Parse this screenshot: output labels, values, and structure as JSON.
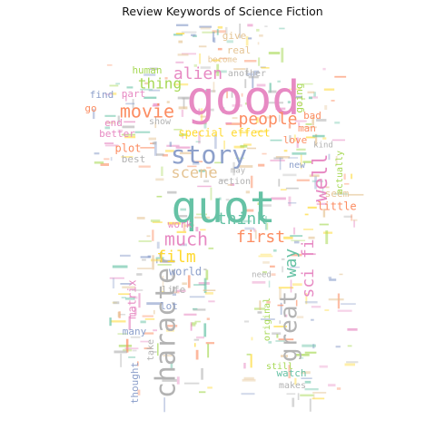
{
  "title": "Review Keywords of Science Fiction",
  "palette": [
    "#66c2a5",
    "#fc8d62",
    "#8da0cb",
    "#e78ac3",
    "#a6d854",
    "#ffd92f",
    "#e5c494",
    "#b3b3b3"
  ],
  "words": [
    {
      "text": "good",
      "color": "#e78ac3"
    },
    {
      "text": "quot",
      "color": "#66c2a5"
    },
    {
      "text": "story",
      "color": "#8da0cb"
    },
    {
      "text": "movie",
      "color": "#fc8d62"
    },
    {
      "text": "alien",
      "color": "#e78ac3"
    },
    {
      "text": "character",
      "color": "#b3b3b3"
    },
    {
      "text": "people",
      "color": "#fc8d62"
    },
    {
      "text": "much",
      "color": "#e78ac3"
    },
    {
      "text": "think",
      "color": "#66c2a5"
    },
    {
      "text": "scene",
      "color": "#e5c494"
    },
    {
      "text": "great",
      "color": "#b3b3b3"
    },
    {
      "text": "well",
      "color": "#e78ac3"
    },
    {
      "text": "first",
      "color": "#fc8d62"
    },
    {
      "text": "film",
      "color": "#ffd92f"
    },
    {
      "text": "thing",
      "color": "#a6d854"
    },
    {
      "text": "way",
      "color": "#66c2a5"
    },
    {
      "text": "sci fi",
      "color": "#e78ac3"
    },
    {
      "text": "special effect",
      "color": "#ffd92f"
    },
    {
      "text": "plot",
      "color": "#fc8d62"
    },
    {
      "text": "human",
      "color": "#a6d854"
    },
    {
      "text": "world",
      "color": "#8da0cb"
    },
    {
      "text": "another",
      "color": "#b3b3b3"
    },
    {
      "text": "going",
      "color": "#a6d854"
    },
    {
      "text": "love",
      "color": "#fc8d62"
    },
    {
      "text": "new",
      "color": "#8da0cb"
    },
    {
      "text": "seem",
      "color": "#e5c494"
    },
    {
      "text": "little",
      "color": "#fc8d62"
    },
    {
      "text": "actually",
      "color": "#a6d854"
    },
    {
      "text": "give",
      "color": "#e5c494"
    },
    {
      "text": "real",
      "color": "#e5c494"
    },
    {
      "text": "find",
      "color": "#8da0cb"
    },
    {
      "text": "part",
      "color": "#e78ac3"
    },
    {
      "text": "end",
      "color": "#e78ac3"
    },
    {
      "text": "better",
      "color": "#e78ac3"
    },
    {
      "text": "best",
      "color": "#b3b3b3"
    },
    {
      "text": "show",
      "color": "#b3b3b3"
    },
    {
      "text": "bad",
      "color": "#fc8d62"
    },
    {
      "text": "man",
      "color": "#fc8d62"
    },
    {
      "text": "work",
      "color": "#e78ac3"
    },
    {
      "text": "life",
      "color": "#b3b3b3"
    },
    {
      "text": "lot",
      "color": "#8da0cb"
    },
    {
      "text": "matrix",
      "color": "#e78ac3"
    },
    {
      "text": "many",
      "color": "#8da0cb"
    },
    {
      "text": "take",
      "color": "#b3b3b3"
    },
    {
      "text": "thought",
      "color": "#8da0cb"
    },
    {
      "text": "action",
      "color": "#b3b3b3"
    },
    {
      "text": "original",
      "color": "#a6d854"
    },
    {
      "text": "still",
      "color": "#a6d854"
    },
    {
      "text": "watch",
      "color": "#66c2a5"
    },
    {
      "text": "makes",
      "color": "#b3b3b3"
    },
    {
      "text": "need",
      "color": "#b3b3b3"
    },
    {
      "text": "go",
      "color": "#fc8d62"
    },
    {
      "text": "become",
      "color": "#e5c494"
    },
    {
      "text": "kind",
      "color": "#b3b3b3"
    },
    {
      "text": "may",
      "color": "#b3b3b3"
    }
  ]
}
